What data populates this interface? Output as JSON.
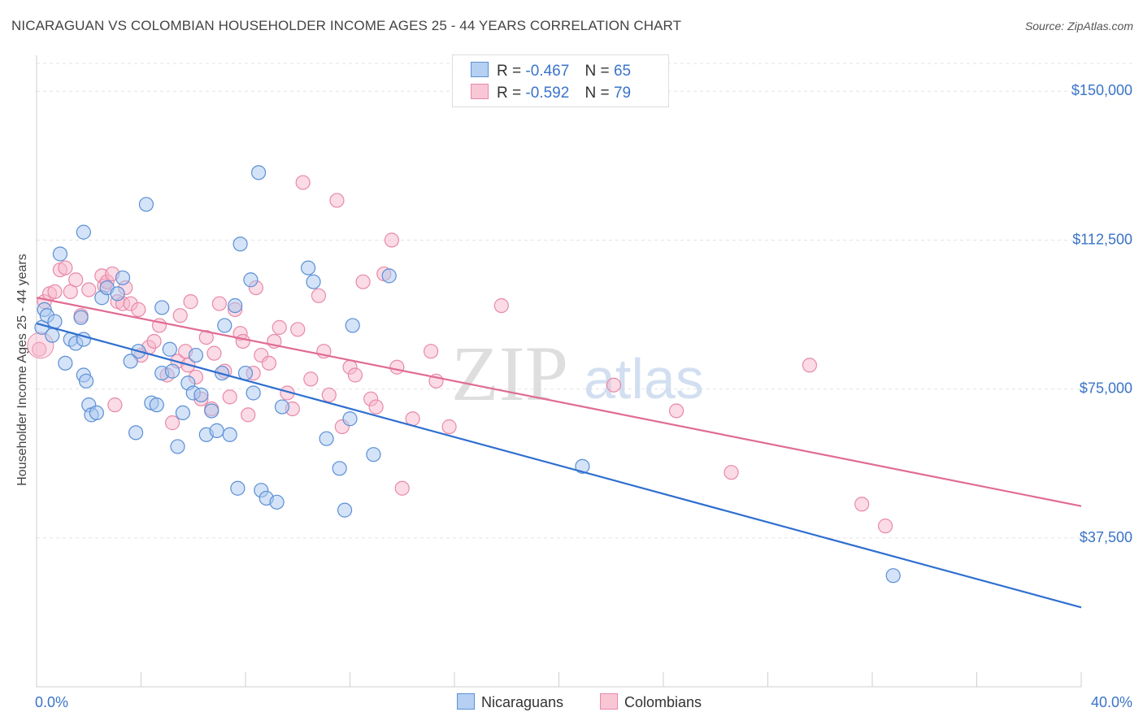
{
  "title": "NICARAGUAN VS COLOMBIAN HOUSEHOLDER INCOME AGES 25 - 44 YEARS CORRELATION CHART",
  "source": "Source: ZipAtlas.com",
  "watermark": {
    "zip": "ZIP",
    "atlas": "atlas"
  },
  "legend": {
    "nicaraguans": {
      "r_label": "R =",
      "r_value": "-0.467",
      "n_label": "N =",
      "n_value": "65"
    },
    "colombians": {
      "r_label": "R =",
      "r_value": "-0.592",
      "n_label": "N =",
      "n_value": "79"
    }
  },
  "chart_data": {
    "type": "scatter",
    "xlabel": "",
    "ylabel": "Householder Income Ages 25 - 44 years",
    "xlim": [
      0,
      40
    ],
    "ylim": [
      0,
      157000
    ],
    "x_tick_labels": [
      "0.0%",
      "40.0%"
    ],
    "y_ticks": [
      37500,
      75000,
      112500,
      150000
    ],
    "y_tick_labels": [
      "$37,500",
      "$75,000",
      "$112,500",
      "$150,000"
    ],
    "grid": true,
    "colors": {
      "nicaraguans_fill": "#a9c8f0",
      "nicaraguans_stroke": "#5b8fd6",
      "nicaraguans_line": "#2f6fd0",
      "colombians_fill": "#f7b8cc",
      "colombians_stroke": "#e889a8",
      "colombians_line": "#e06c93",
      "tick_text": "#3b74c8"
    },
    "series": [
      {
        "name": "Nicaraguans",
        "trend": [
          [
            0,
            91500
          ],
          [
            40,
            20000
          ]
        ],
        "points": [
          [
            0.2,
            90500
          ],
          [
            0.3,
            95000
          ],
          [
            0.4,
            93500
          ],
          [
            0.6,
            88500
          ],
          [
            0.7,
            92000
          ],
          [
            0.9,
            109000
          ],
          [
            1.1,
            81500
          ],
          [
            1.3,
            87500
          ],
          [
            1.5,
            86500
          ],
          [
            1.8,
            78500
          ],
          [
            1.7,
            93000
          ],
          [
            1.8,
            114500
          ],
          [
            1.8,
            87500
          ],
          [
            1.9,
            77000
          ],
          [
            2.0,
            71000
          ],
          [
            2.1,
            68500
          ],
          [
            2.3,
            69000
          ],
          [
            2.5,
            98000
          ],
          [
            2.7,
            100500
          ],
          [
            3.1,
            99000
          ],
          [
            3.3,
            103000
          ],
          [
            3.6,
            82000
          ],
          [
            3.8,
            64000
          ],
          [
            3.9,
            84500
          ],
          [
            4.2,
            121500
          ],
          [
            4.4,
            71500
          ],
          [
            4.6,
            71000
          ],
          [
            4.8,
            79000
          ],
          [
            4.8,
            95500
          ],
          [
            5.1,
            85000
          ],
          [
            5.2,
            79500
          ],
          [
            5.4,
            60500
          ],
          [
            5.6,
            69000
          ],
          [
            5.8,
            76500
          ],
          [
            6.0,
            74000
          ],
          [
            6.1,
            83500
          ],
          [
            6.3,
            73500
          ],
          [
            6.5,
            63500
          ],
          [
            6.7,
            69500
          ],
          [
            6.9,
            64500
          ],
          [
            7.1,
            79000
          ],
          [
            7.2,
            91000
          ],
          [
            7.4,
            63500
          ],
          [
            7.6,
            96000
          ],
          [
            7.7,
            50000
          ],
          [
            7.8,
            111500
          ],
          [
            8.0,
            79000
          ],
          [
            8.2,
            102500
          ],
          [
            8.3,
            74000
          ],
          [
            8.5,
            129500
          ],
          [
            8.6,
            49500
          ],
          [
            8.8,
            47500
          ],
          [
            9.2,
            46500
          ],
          [
            9.4,
            70500
          ],
          [
            10.4,
            105500
          ],
          [
            10.6,
            102000
          ],
          [
            11.1,
            62500
          ],
          [
            11.6,
            55000
          ],
          [
            11.8,
            44500
          ],
          [
            12.0,
            67500
          ],
          [
            12.1,
            91000
          ],
          [
            12.9,
            58500
          ],
          [
            13.5,
            103500
          ],
          [
            20.9,
            55500
          ],
          [
            32.8,
            28000
          ]
        ]
      },
      {
        "name": "Colombians",
        "trend": [
          [
            0,
            98000
          ],
          [
            40,
            45500
          ]
        ],
        "points": [
          [
            0.1,
            85000
          ],
          [
            0.3,
            97000
          ],
          [
            0.5,
            99000
          ],
          [
            0.7,
            99500
          ],
          [
            0.9,
            105000
          ],
          [
            1.1,
            105500
          ],
          [
            1.3,
            99500
          ],
          [
            1.5,
            102500
          ],
          [
            1.7,
            93500
          ],
          [
            2.0,
            100000
          ],
          [
            2.5,
            103500
          ],
          [
            2.6,
            101000
          ],
          [
            2.7,
            102000
          ],
          [
            2.9,
            104000
          ],
          [
            3.1,
            97000
          ],
          [
            3.3,
            96500
          ],
          [
            3.4,
            100500
          ],
          [
            3.6,
            96500
          ],
          [
            3.9,
            95000
          ],
          [
            4.0,
            83500
          ],
          [
            4.3,
            85500
          ],
          [
            4.5,
            87000
          ],
          [
            4.7,
            91000
          ],
          [
            5.0,
            78500
          ],
          [
            5.2,
            66500
          ],
          [
            5.4,
            82000
          ],
          [
            5.5,
            93500
          ],
          [
            5.7,
            84500
          ],
          [
            5.8,
            81000
          ],
          [
            5.9,
            97000
          ],
          [
            6.1,
            78000
          ],
          [
            6.3,
            72500
          ],
          [
            6.5,
            88000
          ],
          [
            6.8,
            84000
          ],
          [
            7.0,
            96500
          ],
          [
            7.2,
            79500
          ],
          [
            7.4,
            73000
          ],
          [
            7.6,
            95000
          ],
          [
            7.8,
            89000
          ],
          [
            7.9,
            87000
          ],
          [
            8.1,
            68500
          ],
          [
            8.3,
            79000
          ],
          [
            8.4,
            100500
          ],
          [
            8.6,
            83500
          ],
          [
            8.9,
            81500
          ],
          [
            9.1,
            87000
          ],
          [
            9.3,
            90500
          ],
          [
            9.6,
            74000
          ],
          [
            10.0,
            90000
          ],
          [
            10.2,
            127000
          ],
          [
            10.5,
            77500
          ],
          [
            10.8,
            98500
          ],
          [
            11.0,
            84500
          ],
          [
            11.2,
            73500
          ],
          [
            11.5,
            122500
          ],
          [
            11.7,
            65500
          ],
          [
            12.0,
            80500
          ],
          [
            12.2,
            78500
          ],
          [
            12.5,
            102000
          ],
          [
            12.8,
            72500
          ],
          [
            13.0,
            70500
          ],
          [
            13.3,
            104000
          ],
          [
            13.6,
            112500
          ],
          [
            13.8,
            80500
          ],
          [
            14.4,
            67500
          ],
          [
            15.1,
            84500
          ],
          [
            15.3,
            77000
          ],
          [
            15.8,
            65500
          ],
          [
            17.8,
            96000
          ],
          [
            22.1,
            76000
          ],
          [
            24.5,
            69500
          ],
          [
            26.6,
            54000
          ],
          [
            29.6,
            81000
          ],
          [
            31.6,
            46000
          ],
          [
            32.5,
            40500
          ],
          [
            9.8,
            70000
          ],
          [
            6.7,
            70000
          ],
          [
            3.0,
            71000
          ],
          [
            14.0,
            50000
          ]
        ]
      }
    ]
  }
}
